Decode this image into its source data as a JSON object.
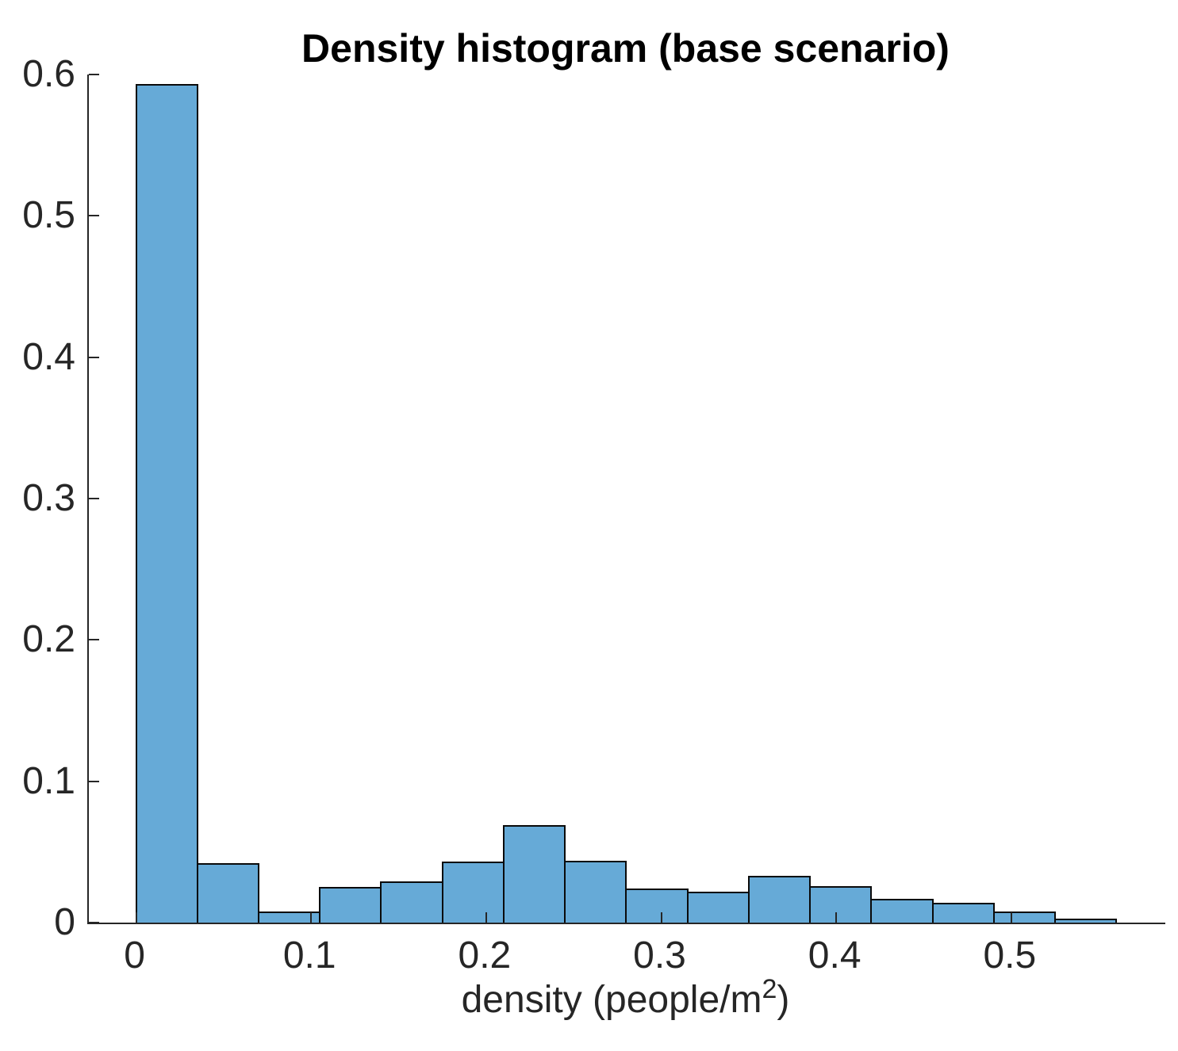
{
  "chart_data": {
    "type": "bar",
    "title": "Density histogram (base scenario)",
    "xlabel_parts": {
      "prefix": "density (people/m",
      "sup": "2",
      "suffix": ")"
    },
    "ylabel": "",
    "normalization_note": "bar heights sum to 1.0 (probability histogram)",
    "bin_width": 0.035,
    "bin_edges": [
      0,
      0.035,
      0.07,
      0.105,
      0.14,
      0.175,
      0.21,
      0.245,
      0.28,
      0.315,
      0.35,
      0.385,
      0.42,
      0.455,
      0.49,
      0.525,
      0.56
    ],
    "values": [
      0.593,
      0.042,
      0.008,
      0.025,
      0.029,
      0.043,
      0.069,
      0.044,
      0.024,
      0.022,
      0.033,
      0.026,
      0.017,
      0.014,
      0.008,
      0.003
    ],
    "x_ticks": [
      {
        "v": 0.0,
        "label": "0"
      },
      {
        "v": 0.1,
        "label": "0.1"
      },
      {
        "v": 0.2,
        "label": "0.2"
      },
      {
        "v": 0.3,
        "label": "0.3"
      },
      {
        "v": 0.4,
        "label": "0.4"
      },
      {
        "v": 0.5,
        "label": "0.5"
      }
    ],
    "y_ticks": [
      {
        "v": 0.0,
        "label": "0"
      },
      {
        "v": 0.1,
        "label": "0.1"
      },
      {
        "v": 0.2,
        "label": "0.2"
      },
      {
        "v": 0.3,
        "label": "0.3"
      },
      {
        "v": 0.4,
        "label": "0.4"
      },
      {
        "v": 0.5,
        "label": "0.5"
      },
      {
        "v": 0.6,
        "label": "0.6"
      }
    ],
    "xlim": [
      -0.027,
      0.588
    ],
    "ylim": [
      0,
      0.6
    ],
    "grid": false,
    "legend": null,
    "colors": {
      "bar_fill": "#66aad7",
      "bar_edge": "#0a0a0a",
      "axis": "#262626",
      "tick_label": "#262626",
      "title": "#000000",
      "background": "#ffffff"
    }
  }
}
